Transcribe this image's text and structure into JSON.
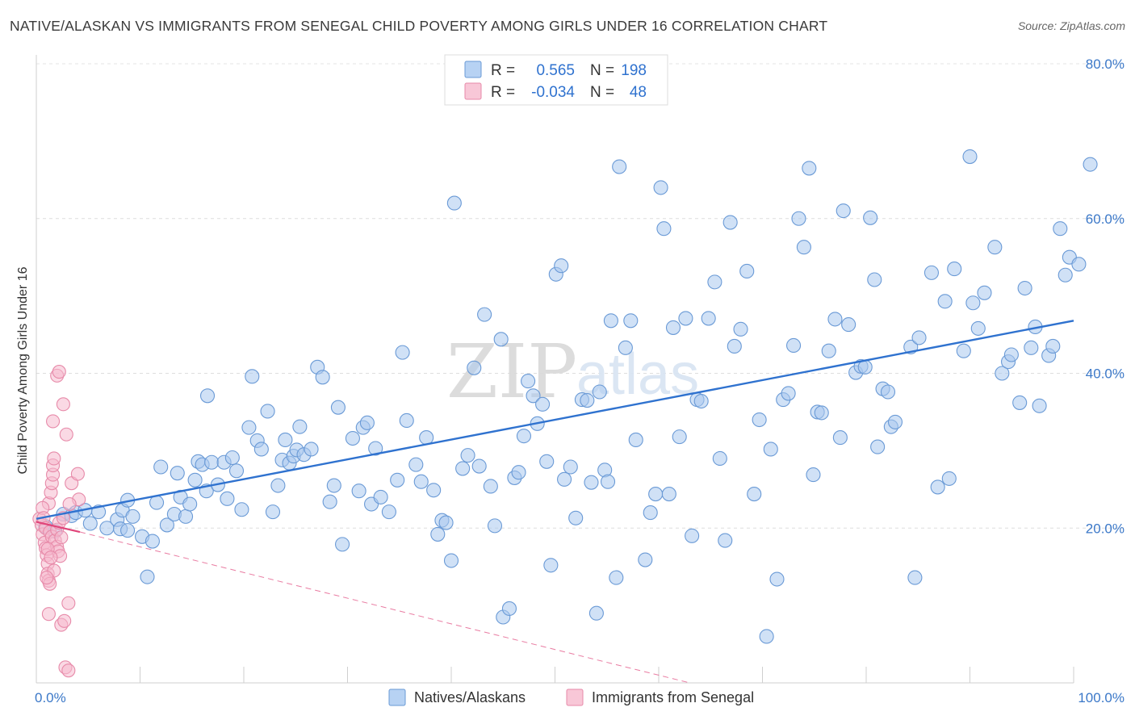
{
  "header": {
    "title": "NATIVE/ALASKAN VS IMMIGRANTS FROM SENEGAL CHILD POVERTY AMONG GIRLS UNDER 16 CORRELATION CHART",
    "source": "Source: ZipAtlas.com"
  },
  "watermark": {
    "zip": "ZIP",
    "atlas": "atlas"
  },
  "legend_top": {
    "rows": [
      {
        "r_label": "R =",
        "r_value": "0.565",
        "n_label": "N =",
        "n_value": "198"
      },
      {
        "r_label": "R =",
        "r_value": "-0.034",
        "n_label": "N =",
        "n_value": "48"
      }
    ]
  },
  "legend_bottom": {
    "items": [
      {
        "label": "Natives/Alaskans"
      },
      {
        "label": "Immigrants from Senegal"
      }
    ]
  },
  "colors": {
    "blue_fill": "#a9c8ef",
    "blue_stroke": "#6a9ad6",
    "blue_line": "#2f72cf",
    "pink_fill": "#f6b9cd",
    "pink_stroke": "#e78aa9",
    "pink_line": "#e0457a",
    "axis_text": "#3b78c8"
  },
  "chart_data": {
    "type": "scatter",
    "title": "NATIVE/ALASKAN VS IMMIGRANTS FROM SENEGAL CHILD POVERTY AMONG GIRLS UNDER 16 CORRELATION CHART",
    "xlabel": "",
    "ylabel": "Child Poverty Among Girls Under 16",
    "xlim": [
      0,
      100
    ],
    "ylim": [
      0,
      80
    ],
    "x_tick_labels": [
      "0.0%",
      "100.0%"
    ],
    "y_ticks": [
      20,
      40,
      60,
      80
    ],
    "y_tick_labels": [
      "20.0%",
      "40.0%",
      "60.0%",
      "80.0%"
    ],
    "grid": true,
    "legend_placement": "bottom-center",
    "series": [
      {
        "name": "Natives/Alaskans",
        "r": 0.565,
        "n": 198,
        "trend": {
          "x": [
            0,
            100
          ],
          "y": [
            21.2,
            46.8
          ],
          "style": "solid"
        },
        "points": [
          [
            0.9,
            20.2
          ],
          [
            1.8,
            19.6
          ],
          [
            2.6,
            21.8
          ],
          [
            3.4,
            21.6
          ],
          [
            3.8,
            22.0
          ],
          [
            4.7,
            22.3
          ],
          [
            5.2,
            20.6
          ],
          [
            6.0,
            22.1
          ],
          [
            6.8,
            20.0
          ],
          [
            7.8,
            21.1
          ],
          [
            8.1,
            19.9
          ],
          [
            8.3,
            22.3
          ],
          [
            8.8,
            23.6
          ],
          [
            9.3,
            21.5
          ],
          [
            8.8,
            19.7
          ],
          [
            10.2,
            18.9
          ],
          [
            10.7,
            13.7
          ],
          [
            11.2,
            18.3
          ],
          [
            11.6,
            23.3
          ],
          [
            12.0,
            27.9
          ],
          [
            12.6,
            20.4
          ],
          [
            13.3,
            21.8
          ],
          [
            13.6,
            27.1
          ],
          [
            13.9,
            24.0
          ],
          [
            14.4,
            21.5
          ],
          [
            14.8,
            23.1
          ],
          [
            15.3,
            26.2
          ],
          [
            15.6,
            28.6
          ],
          [
            16.0,
            28.2
          ],
          [
            16.4,
            24.8
          ],
          [
            16.5,
            37.1
          ],
          [
            16.9,
            28.5
          ],
          [
            17.5,
            25.6
          ],
          [
            18.1,
            28.5
          ],
          [
            18.4,
            23.8
          ],
          [
            18.9,
            29.1
          ],
          [
            19.3,
            27.4
          ],
          [
            19.8,
            22.4
          ],
          [
            20.5,
            33.0
          ],
          [
            20.8,
            39.6
          ],
          [
            21.3,
            31.3
          ],
          [
            21.7,
            30.2
          ],
          [
            22.3,
            35.1
          ],
          [
            22.8,
            22.1
          ],
          [
            23.3,
            25.5
          ],
          [
            23.7,
            28.8
          ],
          [
            24.0,
            31.4
          ],
          [
            24.4,
            28.4
          ],
          [
            24.8,
            29.3
          ],
          [
            25.1,
            30.1
          ],
          [
            25.4,
            33.1
          ],
          [
            25.8,
            29.5
          ],
          [
            26.5,
            30.2
          ],
          [
            27.1,
            40.8
          ],
          [
            27.6,
            39.5
          ],
          [
            28.3,
            23.4
          ],
          [
            28.7,
            25.5
          ],
          [
            29.1,
            35.6
          ],
          [
            29.5,
            17.9
          ],
          [
            30.5,
            31.6
          ],
          [
            31.1,
            24.8
          ],
          [
            31.5,
            33.0
          ],
          [
            31.9,
            33.6
          ],
          [
            32.3,
            23.1
          ],
          [
            32.7,
            30.3
          ],
          [
            33.2,
            24.0
          ],
          [
            34.0,
            22.1
          ],
          [
            34.8,
            26.2
          ],
          [
            35.3,
            42.7
          ],
          [
            35.7,
            33.9
          ],
          [
            36.6,
            28.2
          ],
          [
            37.1,
            26.0
          ],
          [
            37.6,
            31.7
          ],
          [
            38.3,
            24.9
          ],
          [
            38.7,
            19.2
          ],
          [
            39.1,
            21.0
          ],
          [
            39.5,
            20.7
          ],
          [
            40.0,
            15.8
          ],
          [
            40.3,
            62.0
          ],
          [
            41.1,
            27.7
          ],
          [
            41.6,
            29.4
          ],
          [
            42.2,
            40.7
          ],
          [
            42.7,
            28.0
          ],
          [
            43.2,
            47.6
          ],
          [
            43.8,
            25.4
          ],
          [
            44.2,
            20.3
          ],
          [
            44.8,
            44.4
          ],
          [
            45.0,
            8.5
          ],
          [
            45.6,
            9.6
          ],
          [
            46.1,
            26.5
          ],
          [
            46.5,
            27.2
          ],
          [
            47.0,
            31.9
          ],
          [
            47.4,
            39.0
          ],
          [
            47.9,
            37.1
          ],
          [
            48.3,
            33.5
          ],
          [
            48.8,
            36.0
          ],
          [
            49.2,
            28.6
          ],
          [
            49.6,
            15.2
          ],
          [
            50.1,
            52.8
          ],
          [
            50.6,
            53.9
          ],
          [
            50.9,
            26.3
          ],
          [
            51.5,
            27.9
          ],
          [
            52.0,
            21.3
          ],
          [
            52.6,
            36.6
          ],
          [
            53.1,
            36.5
          ],
          [
            53.5,
            25.9
          ],
          [
            54.0,
            9.0
          ],
          [
            54.3,
            37.6
          ],
          [
            54.8,
            27.5
          ],
          [
            55.1,
            26.0
          ],
          [
            55.4,
            46.8
          ],
          [
            55.9,
            13.6
          ],
          [
            56.2,
            66.7
          ],
          [
            56.8,
            43.3
          ],
          [
            57.3,
            46.8
          ],
          [
            57.8,
            31.4
          ],
          [
            58.2,
            75.8
          ],
          [
            58.7,
            15.9
          ],
          [
            59.2,
            22.0
          ],
          [
            59.7,
            24.4
          ],
          [
            60.2,
            64.0
          ],
          [
            60.5,
            58.7
          ],
          [
            61.0,
            24.4
          ],
          [
            61.4,
            45.9
          ],
          [
            62.0,
            31.8
          ],
          [
            62.6,
            47.1
          ],
          [
            63.2,
            19.0
          ],
          [
            63.7,
            36.6
          ],
          [
            64.1,
            36.4
          ],
          [
            64.8,
            47.1
          ],
          [
            65.4,
            51.8
          ],
          [
            65.9,
            29.0
          ],
          [
            66.4,
            18.4
          ],
          [
            66.9,
            59.5
          ],
          [
            67.3,
            43.5
          ],
          [
            67.9,
            45.7
          ],
          [
            68.5,
            53.2
          ],
          [
            69.2,
            24.4
          ],
          [
            69.7,
            34.0
          ],
          [
            70.4,
            6.0
          ],
          [
            70.8,
            30.2
          ],
          [
            71.4,
            13.4
          ],
          [
            72.0,
            36.6
          ],
          [
            72.5,
            37.4
          ],
          [
            73.0,
            43.6
          ],
          [
            73.5,
            60.0
          ],
          [
            74.0,
            56.3
          ],
          [
            74.5,
            66.5
          ],
          [
            74.9,
            26.9
          ],
          [
            75.3,
            35.0
          ],
          [
            75.7,
            34.9
          ],
          [
            76.4,
            42.9
          ],
          [
            77.0,
            47.0
          ],
          [
            77.5,
            31.7
          ],
          [
            77.8,
            61.0
          ],
          [
            78.3,
            46.3
          ],
          [
            79.0,
            40.1
          ],
          [
            79.5,
            40.9
          ],
          [
            79.9,
            40.8
          ],
          [
            80.4,
            60.1
          ],
          [
            80.8,
            52.1
          ],
          [
            81.1,
            30.5
          ],
          [
            81.6,
            38.0
          ],
          [
            82.1,
            37.6
          ],
          [
            82.4,
            33.1
          ],
          [
            82.8,
            33.7
          ],
          [
            84.3,
            43.4
          ],
          [
            84.7,
            13.6
          ],
          [
            85.1,
            44.6
          ],
          [
            86.3,
            53.0
          ],
          [
            86.9,
            25.3
          ],
          [
            87.6,
            49.3
          ],
          [
            88.0,
            26.4
          ],
          [
            88.5,
            53.5
          ],
          [
            89.4,
            42.9
          ],
          [
            90.0,
            68.0
          ],
          [
            90.3,
            49.1
          ],
          [
            90.8,
            45.8
          ],
          [
            91.4,
            50.4
          ],
          [
            92.4,
            56.3
          ],
          [
            93.1,
            40.0
          ],
          [
            93.7,
            41.5
          ],
          [
            94.0,
            42.4
          ],
          [
            94.8,
            36.2
          ],
          [
            95.3,
            51.0
          ],
          [
            95.9,
            43.3
          ],
          [
            96.3,
            46.0
          ],
          [
            96.7,
            35.8
          ],
          [
            97.6,
            42.3
          ],
          [
            98.0,
            43.5
          ],
          [
            98.7,
            58.7
          ],
          [
            99.2,
            52.7
          ],
          [
            99.6,
            55.0
          ],
          [
            100.5,
            54.1
          ],
          [
            101.6,
            67.0
          ]
        ]
      },
      {
        "name": "Immigrants from Senegal",
        "r": -0.034,
        "n": 48,
        "trend": {
          "x": [
            0,
            4.2
          ],
          "y": [
            20.8,
            19.5
          ],
          "style": "solid",
          "extension": {
            "x": [
              4.2,
              63.0
            ],
            "y": [
              19.5,
              0.0
            ],
            "style": "dashed"
          }
        },
        "points": [
          [
            0.3,
            21.2
          ],
          [
            0.5,
            20.4
          ],
          [
            0.6,
            19.2
          ],
          [
            0.8,
            18.1
          ],
          [
            0.9,
            17.4
          ],
          [
            1.0,
            16.5
          ],
          [
            1.1,
            15.4
          ],
          [
            1.1,
            14.1
          ],
          [
            1.2,
            13.2
          ],
          [
            1.3,
            12.8
          ],
          [
            1.2,
            23.2
          ],
          [
            1.4,
            24.6
          ],
          [
            1.5,
            25.8
          ],
          [
            1.6,
            26.9
          ],
          [
            1.6,
            28.1
          ],
          [
            1.7,
            29.0
          ],
          [
            0.6,
            22.6
          ],
          [
            0.7,
            21.3
          ],
          [
            0.9,
            20.0
          ],
          [
            1.3,
            19.5
          ],
          [
            1.5,
            18.9
          ],
          [
            1.8,
            18.4
          ],
          [
            2.0,
            17.6
          ],
          [
            2.1,
            17.0
          ],
          [
            2.3,
            16.4
          ],
          [
            2.0,
            19.8
          ],
          [
            2.2,
            20.7
          ],
          [
            2.4,
            18.8
          ],
          [
            2.6,
            21.3
          ],
          [
            1.1,
            17.3
          ],
          [
            1.4,
            16.2
          ],
          [
            1.2,
            8.9
          ],
          [
            1.6,
            33.8
          ],
          [
            2.0,
            39.7
          ],
          [
            2.2,
            40.2
          ],
          [
            2.4,
            7.5
          ],
          [
            2.7,
            8.0
          ],
          [
            2.6,
            36.0
          ],
          [
            2.9,
            32.1
          ],
          [
            3.1,
            10.3
          ],
          [
            3.4,
            25.8
          ],
          [
            2.8,
            2.0
          ],
          [
            4.0,
            27.0
          ],
          [
            4.1,
            23.7
          ],
          [
            3.2,
            23.1
          ],
          [
            1.7,
            14.5
          ],
          [
            1.0,
            13.6
          ],
          [
            3.1,
            1.6
          ]
        ]
      }
    ]
  }
}
